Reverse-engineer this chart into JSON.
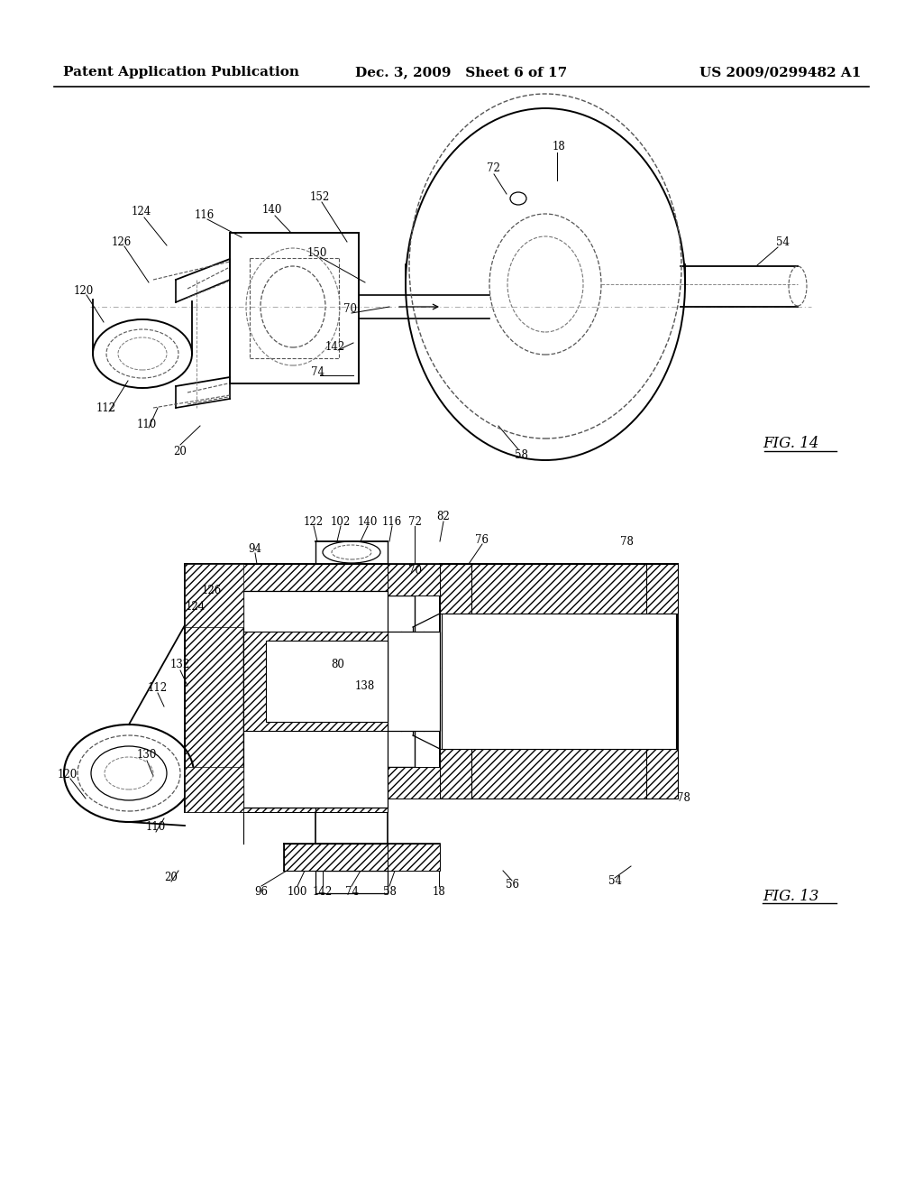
{
  "background_color": "#ffffff",
  "header_left": "Patent Application Publication",
  "header_middle": "Dec. 3, 2009   Sheet 6 of 17",
  "header_right": "US 2009/0299482 A1",
  "header_fontsize": 11,
  "annotation_fontsize": 8.5,
  "fig_label_fontsize": 12
}
